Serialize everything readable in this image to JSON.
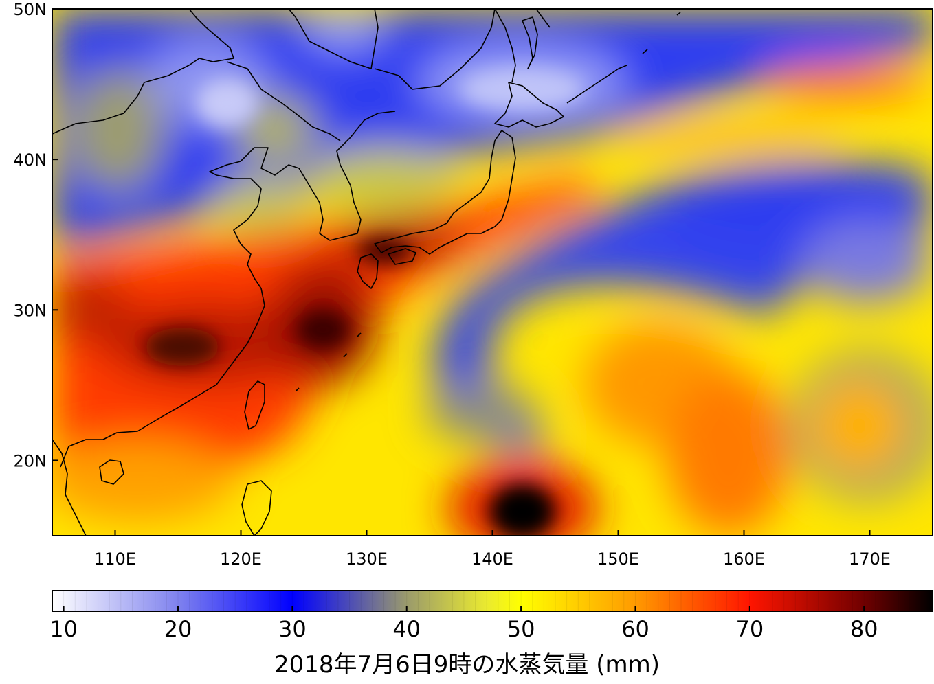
{
  "map": {
    "lat_labels": [
      "50N",
      "40N",
      "30N",
      "20N"
    ],
    "lon_labels": [
      "110E",
      "120E",
      "130E",
      "140E",
      "150E",
      "160E",
      "170E"
    ],
    "extent": {
      "lon": [
        105,
        175
      ],
      "lat": [
        15,
        50
      ]
    }
  },
  "colorbar": {
    "tick_labels": [
      "10",
      "20",
      "30",
      "40",
      "50",
      "60",
      "70",
      "80"
    ],
    "range": [
      9,
      86
    ],
    "stops": [
      {
        "v": 9,
        "c": "#ffffff"
      },
      {
        "v": 20,
        "c": "#7f82ee"
      },
      {
        "v": 30,
        "c": "#0000ff"
      },
      {
        "v": 40,
        "c": "#9a9a6c"
      },
      {
        "v": 47,
        "c": "#eaea30"
      },
      {
        "v": 50,
        "c": "#ffff00"
      },
      {
        "v": 60,
        "c": "#ff9a00"
      },
      {
        "v": 70,
        "c": "#ff1500"
      },
      {
        "v": 80,
        "c": "#700000"
      },
      {
        "v": 86,
        "c": "#000000"
      }
    ]
  },
  "caption": "2018年7月6日9時の水蒸気量 (mm)",
  "colors": {
    "moist": "#ff2a00",
    "very_moist": "#5a0000",
    "dry": "#2a3cf0",
    "medium": "#ffff00"
  }
}
